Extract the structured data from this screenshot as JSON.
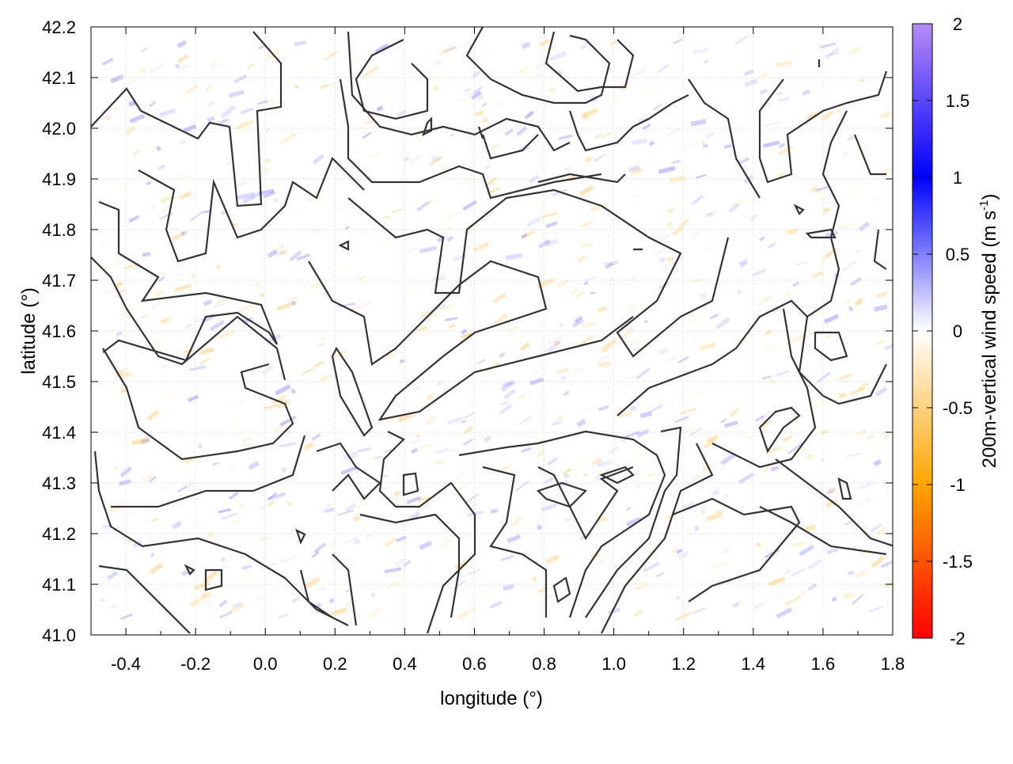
{
  "chart_data": {
    "type": "heatmap",
    "title": "",
    "xlabel": "longitude (°)",
    "ylabel": "latitude (°)",
    "xlim": [
      -0.5,
      1.8
    ],
    "ylim": [
      41.0,
      42.2
    ],
    "xticks": [
      "-0.4",
      "-0.2",
      "0.0",
      "0.2",
      "0.4",
      "0.6",
      "0.8",
      "1.0",
      "1.2",
      "1.4",
      "1.6",
      "1.8"
    ],
    "xtick_values": [
      -0.4,
      -0.2,
      0.0,
      0.2,
      0.4,
      0.6,
      0.8,
      1.0,
      1.2,
      1.4,
      1.6,
      1.8
    ],
    "yticks": [
      "41.0",
      "41.1",
      "41.2",
      "41.3",
      "41.4",
      "41.5",
      "41.6",
      "41.7",
      "41.8",
      "41.9",
      "42.0",
      "42.1",
      "42.2"
    ],
    "ytick_values": [
      41.0,
      41.1,
      41.2,
      41.3,
      41.4,
      41.5,
      41.6,
      41.7,
      41.8,
      41.9,
      42.0,
      42.1,
      42.2
    ],
    "grid": true,
    "overlay": "terrain contour lines (black)",
    "colorbar": {
      "label": "200m-vertical wind speed (m s",
      "label_sup": "-1",
      "label_end": ")",
      "range": [
        -2,
        2
      ],
      "ticks": [
        "2",
        "1.5",
        "1",
        "0.5",
        "0",
        "-0.5",
        "-1",
        "-1.5",
        "-2"
      ],
      "tick_values": [
        2,
        1.5,
        1,
        0.5,
        0,
        -0.5,
        -1,
        -1.5,
        -2
      ],
      "colors": {
        "2": "#b68cf5",
        "1": "#0000ff",
        "0": "#ffffff",
        "-1": "#ffa500",
        "-2": "#ff0000"
      }
    }
  }
}
